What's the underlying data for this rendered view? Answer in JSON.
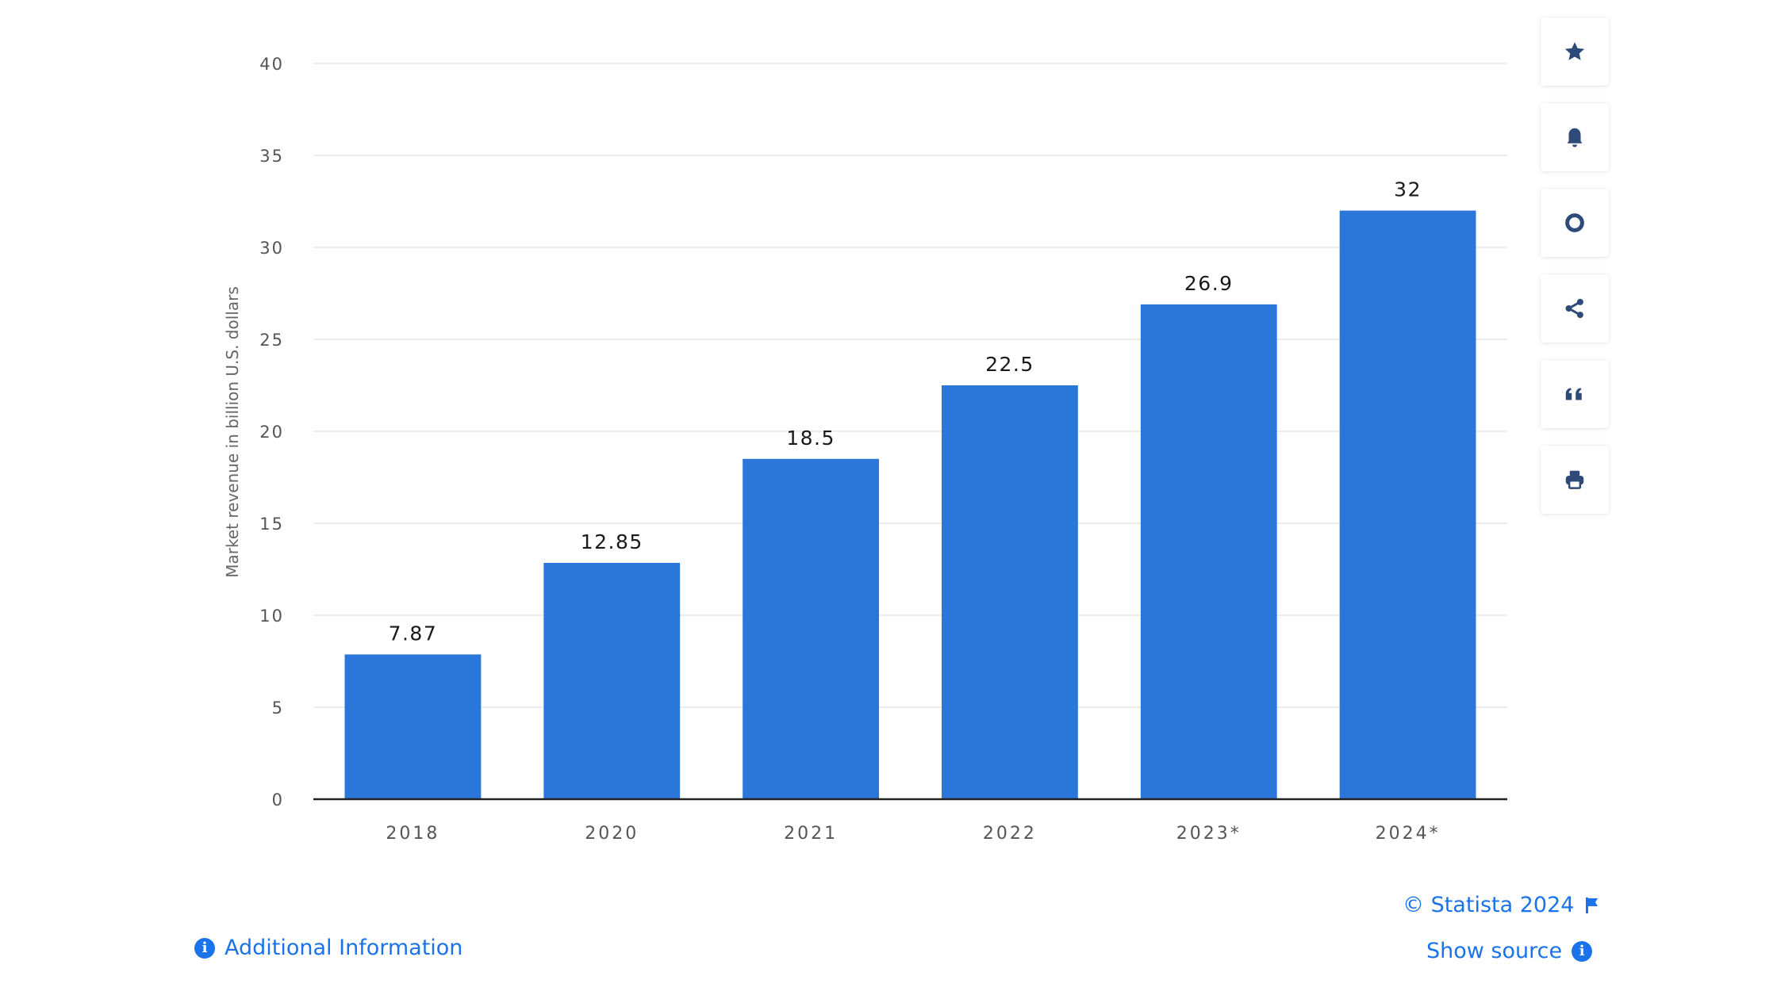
{
  "chart_data": {
    "type": "bar",
    "categories": [
      "2018",
      "2020",
      "2021",
      "2022",
      "2023*",
      "2024*"
    ],
    "values": [
      7.87,
      12.85,
      18.5,
      22.5,
      26.9,
      32
    ],
    "value_labels": [
      "7.87",
      "12.85",
      "18.5",
      "22.5",
      "26.9",
      "32"
    ],
    "ylabel": "Market revenue in billion U.S. dollars",
    "xlabel": "",
    "ylim": [
      0,
      40
    ],
    "yticks": [
      0,
      5,
      10,
      15,
      20,
      25,
      30,
      35,
      40
    ],
    "grid": true,
    "bar_color": "#2a77d9",
    "axis_color": "#222222",
    "grid_color": "#e6e6e6",
    "tick_label_color": "#555555",
    "value_label_color": "#1a1a1a"
  },
  "toolbar": {
    "buttons": [
      {
        "name": "favorite-button",
        "icon": "star-icon"
      },
      {
        "name": "notification-button",
        "icon": "bell-icon"
      },
      {
        "name": "settings-button",
        "icon": "gear-icon"
      },
      {
        "name": "share-button",
        "icon": "share-icon"
      },
      {
        "name": "cite-button",
        "icon": "quote-icon"
      },
      {
        "name": "print-button",
        "icon": "printer-icon"
      }
    ],
    "icon_color": "#2d4a78"
  },
  "footer": {
    "additional_info": "Additional Information",
    "credit": "© Statista 2024",
    "show_source": "Show source",
    "link_color": "#1a73e8"
  }
}
